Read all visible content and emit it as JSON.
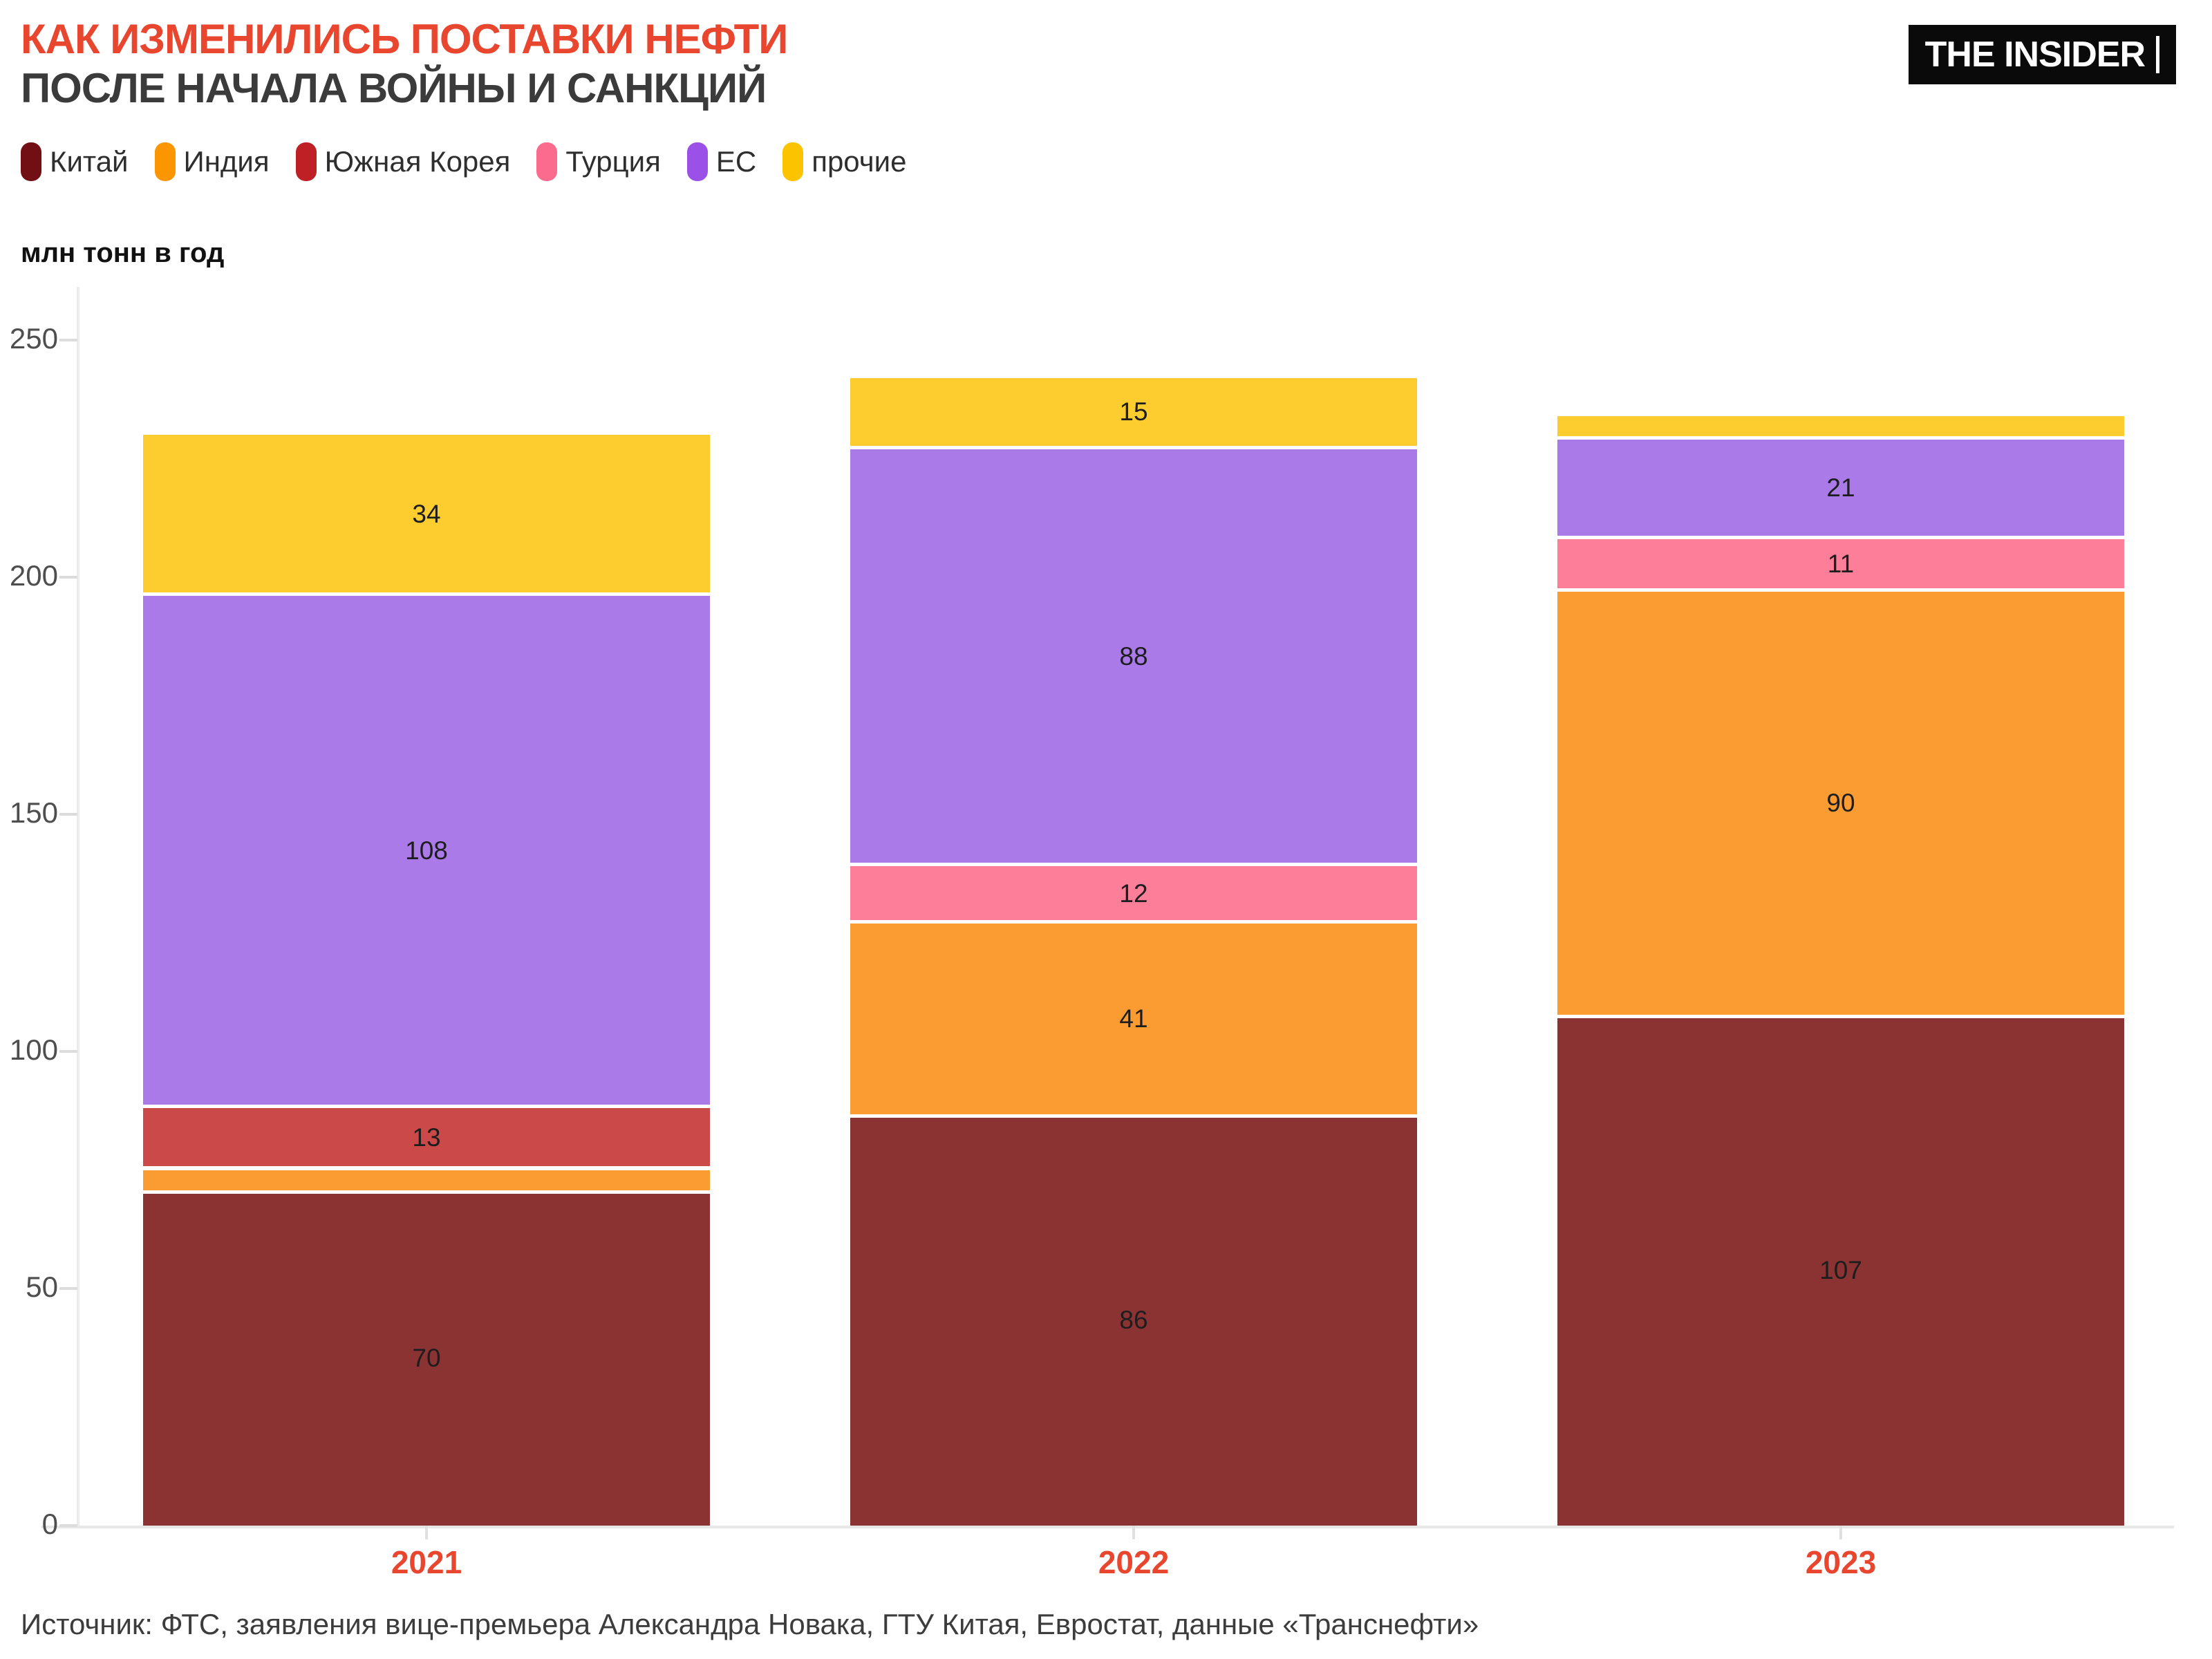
{
  "header": {
    "title_line1": "КАК ИЗМЕНИЛИСЬ ПОСТАВКИ НЕФТИ",
    "title_line2": "ПОСЛЕ НАЧАЛА ВОЙНЫ И САНКЦИЙ",
    "logo": "THE INSIDER"
  },
  "legend": [
    {
      "label": "Китай",
      "color": "#720f14"
    },
    {
      "label": "Индия",
      "color": "#fb9500"
    },
    {
      "label": "Южная Корея",
      "color": "#bf2026"
    },
    {
      "label": "Турция",
      "color": "#fb6b8e"
    },
    {
      "label": "ЕС",
      "color": "#9b51e8"
    },
    {
      "label": "прочие",
      "color": "#fcc400"
    }
  ],
  "chart_data": {
    "type": "bar",
    "stacked": true,
    "title": "КАК ИЗМЕНИЛИСЬ ПОСТАВКИ НЕФТИ ПОСЛЕ НАЧАЛА ВОЙНЫ И САНКЦИЙ",
    "ylabel": "млн тонн в год",
    "xlabel": "",
    "ylim": [
      0,
      250
    ],
    "yticks": [
      0,
      50,
      100,
      150,
      200,
      250
    ],
    "grid": false,
    "legend_position": "top",
    "categories": [
      "2021",
      "2022",
      "2023"
    ],
    "series": [
      {
        "name": "Китай",
        "color": "#8b3233",
        "values": [
          70,
          86,
          107
        ],
        "labels": [
          "70",
          "86",
          "107"
        ]
      },
      {
        "name": "Индия",
        "color": "#fb9c33",
        "values": [
          5,
          41,
          90
        ],
        "labels": [
          null,
          "41",
          "90"
        ]
      },
      {
        "name": "Южная Корея",
        "color": "#cb4a49",
        "values": [
          13,
          0,
          0
        ],
        "labels": [
          "13",
          null,
          null
        ]
      },
      {
        "name": "Турция",
        "color": "#fc7e99",
        "values": [
          0,
          12,
          11
        ],
        "labels": [
          null,
          "12",
          "11"
        ]
      },
      {
        "name": "ЕС",
        "color": "#a97ae8",
        "values": [
          108,
          88,
          21
        ],
        "labels": [
          "108",
          "88",
          "21"
        ]
      },
      {
        "name": "прочие",
        "color": "#fdcd30",
        "values": [
          34,
          15,
          5
        ],
        "labels": [
          "34",
          "15",
          null
        ]
      }
    ],
    "totals": [
      230,
      242,
      234
    ]
  },
  "colors": {
    "title_accent": "#e8462f",
    "year_label": "#e8462f"
  },
  "source": "Источник: ФТС, заявления вице-премьера Александра Новака, ГТУ Китая, Евростат, данные «Транснефти»"
}
